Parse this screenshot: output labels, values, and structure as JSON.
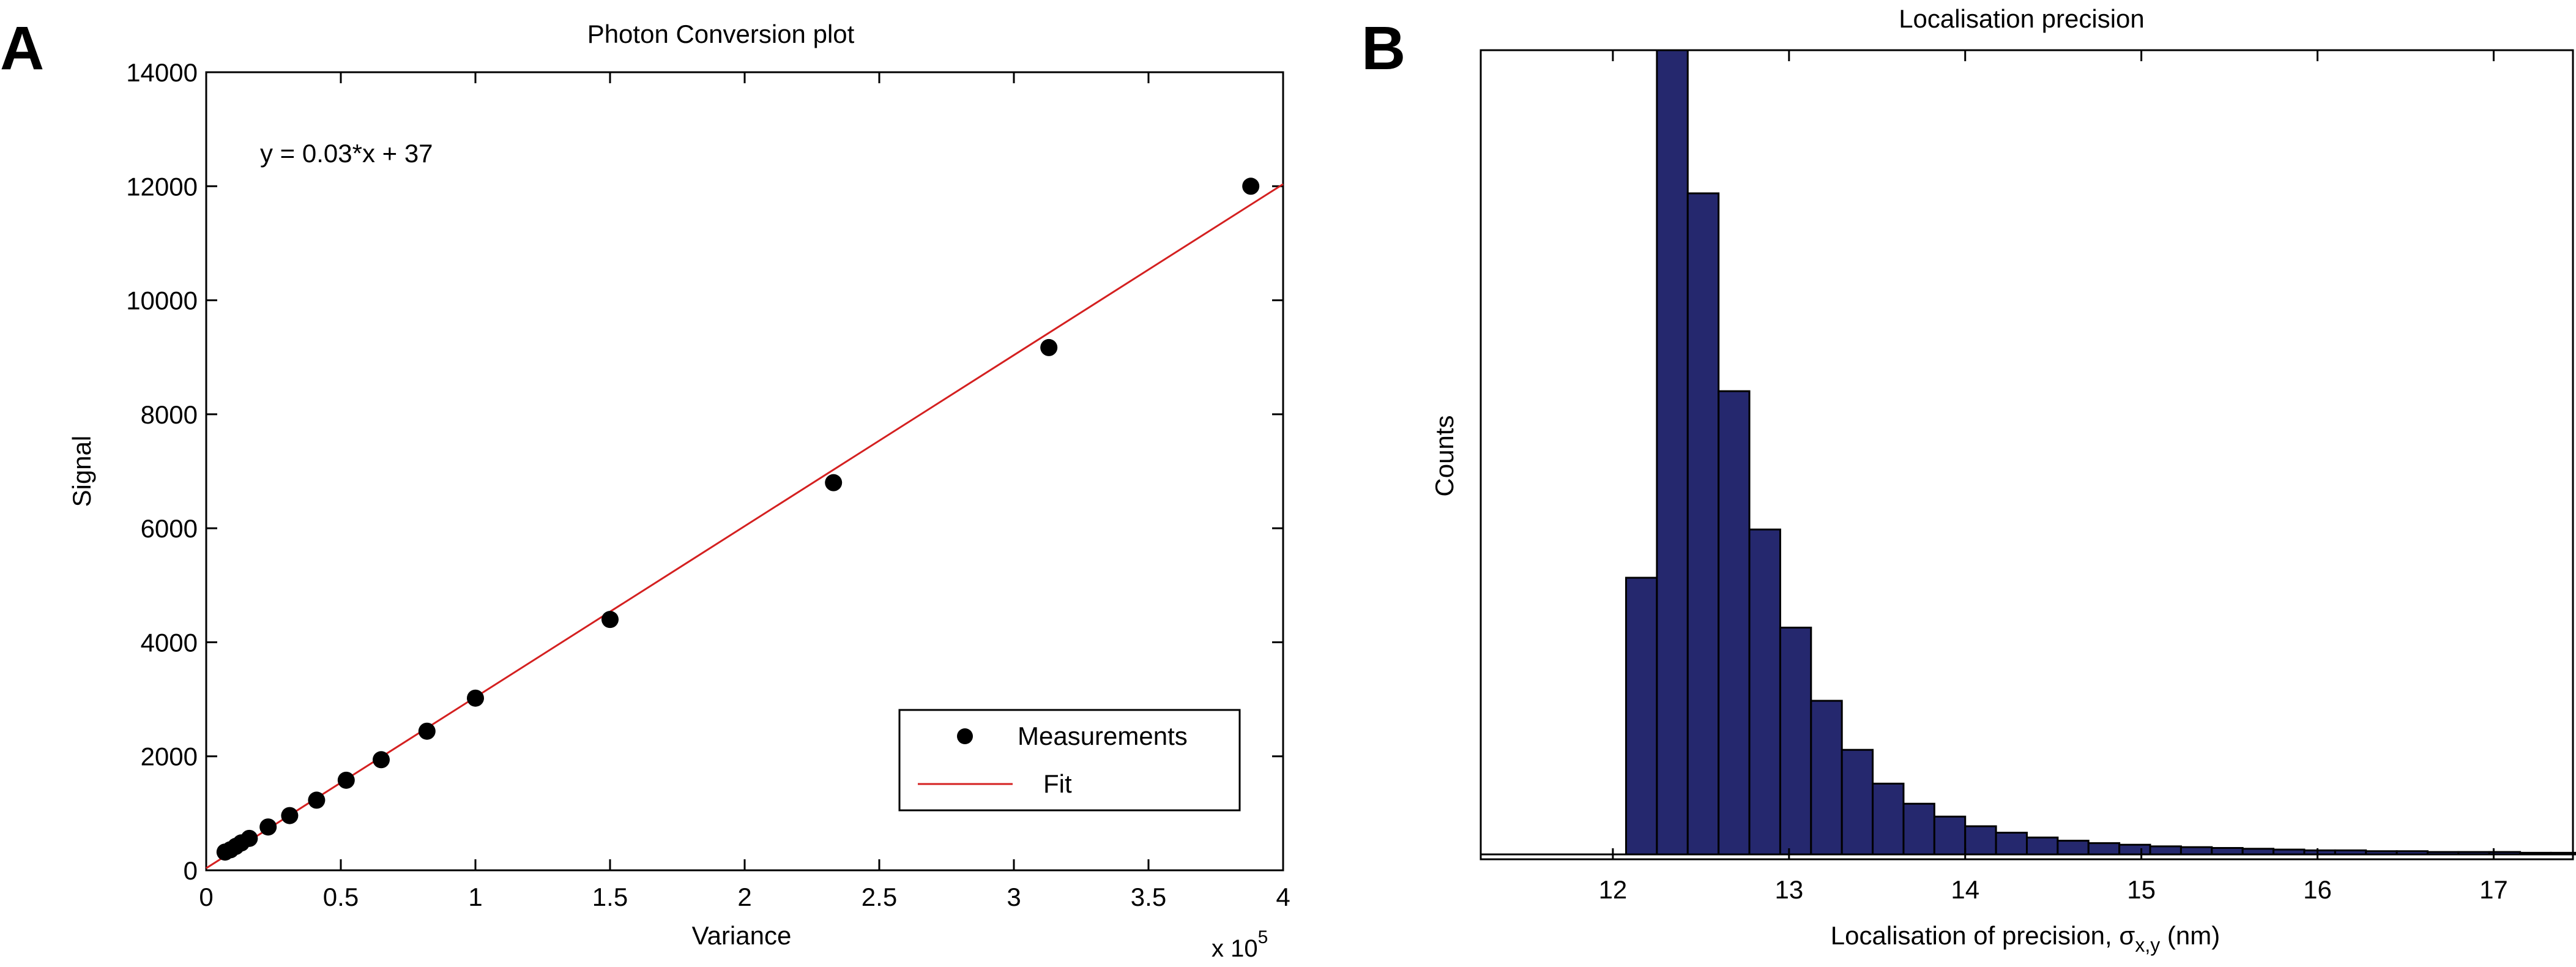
{
  "chart_data": [
    {
      "panel_label": "A",
      "type": "scatter",
      "title": "Photon Conversion plot",
      "xlabel": "Variance",
      "ylabel": "Signal",
      "x_multiplier": "x 10",
      "x_multiplier_exponent": "5",
      "xlim": [
        0,
        4
      ],
      "ylim": [
        0,
        14000
      ],
      "xticks": [
        "0",
        "0.5",
        "1",
        "1.5",
        "2",
        "2.5",
        "3",
        "3.5",
        "4"
      ],
      "yticks": [
        "0",
        "2000",
        "4000",
        "6000",
        "8000",
        "10000",
        "12000",
        "14000"
      ],
      "annotation": "y = 0.03*x + 37",
      "grid": false,
      "legend_position": "bottom-right",
      "series": [
        {
          "name": "Measurements",
          "marker": "circle",
          "color": "#000000",
          "x": [
            0.07,
            0.09,
            0.11,
            0.13,
            0.16,
            0.23,
            0.31,
            0.41,
            0.52,
            0.65,
            0.82,
            1.0,
            1.5,
            2.33,
            3.13,
            3.88
          ],
          "y": [
            320,
            360,
            420,
            480,
            560,
            760,
            960,
            1230,
            1580,
            1940,
            2440,
            3020,
            4400,
            6800,
            9170,
            12000
          ]
        },
        {
          "name": "Fit",
          "line": true,
          "color": "#d42020",
          "x": [
            0,
            4
          ],
          "y": [
            37,
            12037
          ]
        }
      ]
    },
    {
      "panel_label": "B",
      "type": "bar",
      "title": "Localisation precision",
      "xlabel": "Localisation of precision, σ",
      "xlabel_subscript": "x,y",
      "xlabel_unit": " (nm)",
      "ylabel": "Counts",
      "xlim": [
        11.25,
        17.45
      ],
      "ylim": [
        0,
        1000
      ],
      "xticks": [
        "12",
        "13",
        "14",
        "15",
        "16",
        "17"
      ],
      "grid": false,
      "bar_color": "#25286e",
      "bin_width": 0.175,
      "bin_start": 12.075,
      "values": [
        344,
        1010,
        822,
        576,
        404,
        282,
        191,
        130,
        88,
        63,
        47,
        35,
        27,
        21,
        17,
        14,
        12,
        10,
        9,
        8,
        7,
        6,
        5,
        5,
        4,
        4,
        3,
        3,
        3,
        2,
        2
      ]
    }
  ]
}
